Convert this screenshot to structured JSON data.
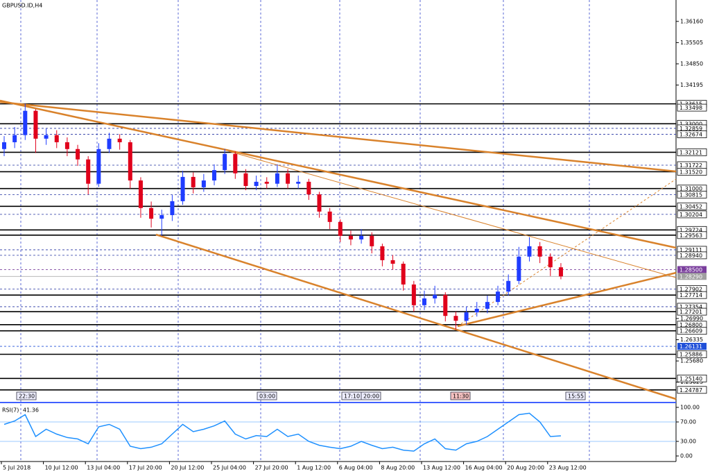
{
  "chart_data": [
    {
      "type": "candlestick",
      "title": "GBPUSD.ID,H4",
      "open": [
        1.3222,
        1.3243,
        1.3265,
        1.334,
        1.3254,
        1.3265,
        1.3243,
        1.3222,
        1.319,
        1.3115,
        1.3222,
        1.3254,
        1.3243,
        1.3125,
        1.304,
        1.3007,
        1.3018,
        1.3061,
        1.3136,
        1.3104,
        1.3125,
        1.3157,
        1.3207,
        1.3147,
        1.3108,
        1.3121,
        1.3115,
        1.3147,
        1.3115,
        1.3121,
        1.3082,
        1.3029,
        1.2997,
        1.2954,
        1.2943,
        1.2954,
        1.2922,
        1.2879,
        1.2868,
        1.2804,
        1.274,
        1.2761,
        1.2772,
        1.2707,
        1.2692,
        1.2718,
        1.2729,
        1.275,
        1.2782,
        1.2815,
        1.289,
        1.2922,
        1.289,
        1.2857
      ],
      "high": [
        1.3262,
        1.329,
        1.3362,
        1.3345,
        1.3285,
        1.328,
        1.3258,
        1.3235,
        1.32,
        1.324,
        1.3272,
        1.3268,
        1.325,
        1.3135,
        1.306,
        1.3035,
        1.308,
        1.3155,
        1.315,
        1.3145,
        1.3175,
        1.3222,
        1.3215,
        1.316,
        1.314,
        1.3135,
        1.3175,
        1.316,
        1.314,
        1.313,
        1.309,
        1.304,
        1.3005,
        1.297,
        1.2975,
        1.2965,
        1.293,
        1.2895,
        1.2875,
        1.2815,
        1.2785,
        1.28,
        1.278,
        1.272,
        1.2735,
        1.275,
        1.277,
        1.28,
        1.2835,
        1.292,
        1.295,
        1.2935,
        1.29,
        1.287
      ],
      "low": [
        1.32,
        1.3225,
        1.325,
        1.321,
        1.3235,
        1.3225,
        1.32,
        1.317,
        1.3082,
        1.3105,
        1.321,
        1.322,
        1.31,
        1.301,
        1.298,
        1.2954,
        1.3,
        1.305,
        1.3085,
        1.309,
        1.311,
        1.3145,
        1.313,
        1.3095,
        1.3095,
        1.31,
        1.3105,
        1.31,
        1.31,
        1.3065,
        1.301,
        1.2975,
        1.2935,
        1.2925,
        1.293,
        1.29,
        1.286,
        1.285,
        1.2785,
        1.272,
        1.2725,
        1.2745,
        1.269,
        1.2665,
        1.268,
        1.2705,
        1.2715,
        1.274,
        1.277,
        1.2805,
        1.2875,
        1.287,
        1.283,
        1.282
      ],
      "close": [
        1.3243,
        1.3265,
        1.334,
        1.3254,
        1.3265,
        1.3243,
        1.3222,
        1.319,
        1.3115,
        1.3222,
        1.3254,
        1.3243,
        1.3125,
        1.304,
        1.3007,
        1.3018,
        1.3061,
        1.3136,
        1.3104,
        1.3125,
        1.3157,
        1.3207,
        1.3147,
        1.3108,
        1.3121,
        1.3115,
        1.3147,
        1.3115,
        1.3121,
        1.3082,
        1.3029,
        1.2997,
        1.2954,
        1.2943,
        1.2954,
        1.2922,
        1.2879,
        1.2868,
        1.2804,
        1.274,
        1.2761,
        1.2772,
        1.2707,
        1.2692,
        1.2718,
        1.2729,
        1.275,
        1.2782,
        1.2815,
        1.289,
        1.2922,
        1.289,
        1.2857,
        1.2829
      ],
      "up_color": "#1f3cff",
      "down_color": "#e0001b",
      "ylim": [
        1.2444,
        1.3682
      ],
      "yticks": [
        {
          "value": 1.3616,
          "label": "1.36160"
        },
        1.35505,
        {
          "value": 1.3485,
          "label": "1.34850"
        },
        1.34195,
        {
          "value": 1.2699,
          "label": "1.26990"
        },
        1.26335,
        {
          "value": 1.2568,
          "label": "1.25680"
        },
        1.25025
      ],
      "levels": [
        {
          "value": 1.33615,
          "label": "1.33615",
          "line": "solid"
        },
        {
          "value": 1.33498,
          "label": "1.33498",
          "line": "none"
        },
        {
          "value": 1.33,
          "label": "1.33000",
          "line": "solid"
        },
        {
          "value": 1.32859,
          "label": "1.32859",
          "line": "dashed"
        },
        {
          "value": 1.32674,
          "label": "1.32674",
          "line": "dashed"
        },
        {
          "value": 1.32121,
          "label": "1.32121",
          "line": "solid"
        },
        {
          "value": 1.31722,
          "label": "1.31722",
          "line": "dashed"
        },
        {
          "value": 1.3152,
          "label": "1.31520",
          "line": "solid"
        },
        {
          "value": 1.31,
          "label": "1.31000",
          "line": "solid"
        },
        {
          "value": 1.30815,
          "label": "1.30815",
          "line": "dashed"
        },
        {
          "value": 1.30452,
          "label": "1.30452",
          "line": "solid"
        },
        {
          "value": 1.30204,
          "label": "1.30204",
          "line": "dashed"
        },
        {
          "value": 1.29724,
          "label": "1.29724",
          "line": "solid"
        },
        {
          "value": 1.29563,
          "label": "1.29563",
          "line": "solid"
        },
        {
          "value": 1.29111,
          "label": "1.29111",
          "line": "dashed"
        },
        {
          "value": 1.2894,
          "label": "1.28940",
          "line": "dashed"
        },
        {
          "value": 1.285,
          "label": "1.28500",
          "line": "dashed",
          "color": "#7a3e9d"
        },
        {
          "value": 1.2829,
          "label": "1.28290",
          "line": "current",
          "color": "#a0a0a0"
        },
        {
          "value": 1.27902,
          "label": "1.27902",
          "line": "dashed"
        },
        {
          "value": 1.27714,
          "label": "1.27714",
          "line": "solid"
        },
        {
          "value": 1.27354,
          "label": "1.27354",
          "line": "dashed"
        },
        {
          "value": 1.27201,
          "label": "1.27201",
          "line": "solid"
        },
        {
          "value": 1.268,
          "label": "1.26800",
          "line": "solid"
        },
        {
          "value": 1.26609,
          "label": "1.26609",
          "line": "solid"
        },
        {
          "value": 1.26131,
          "label": "1.26131",
          "line": "dashed",
          "color": "#1f4fd8"
        },
        {
          "value": 1.25886,
          "label": "1.25886",
          "line": "solid"
        },
        {
          "value": 1.2514,
          "label": "1.25140",
          "line": "solid"
        },
        {
          "value": 1.24787,
          "label": "1.24787",
          "line": "solid"
        }
      ],
      "xticks": [
        {
          "value": 0,
          "label": "5 Jul 2018"
        },
        {
          "value": 4,
          "label": "10 Jul 12:00"
        },
        {
          "value": 8,
          "label": "13 Jul 04:00"
        },
        {
          "value": 12,
          "label": "17 Jul 20:00"
        },
        {
          "value": 16,
          "label": "20 Jul 12:00"
        },
        {
          "value": 20,
          "label": "25 Jul 04:00"
        },
        {
          "value": 24,
          "label": "27 Jul 20:00"
        },
        {
          "value": 28,
          "label": "1 Aug 12:00"
        },
        {
          "value": 32,
          "label": "6 Aug 04:00"
        },
        {
          "value": 36,
          "label": "8 Aug 20:00"
        },
        {
          "value": 40,
          "label": "13 Aug 12:00"
        },
        {
          "value": 44,
          "label": "16 Aug 04:00"
        },
        {
          "value": 48,
          "label": "20 Aug 20:00"
        },
        {
          "value": 52,
          "label": "23 Aug 12:00"
        }
      ],
      "time_markers": [
        "22:30",
        "03:00",
        "17:10",
        "20:00",
        "11:30",
        "15:55"
      ]
    },
    {
      "type": "line",
      "title": "RSI(7)",
      "color": "#1e90ff",
      "values": [
        65,
        72,
        85,
        40,
        55,
        45,
        38,
        35,
        25,
        60,
        65,
        55,
        20,
        15,
        18,
        25,
        45,
        65,
        50,
        55,
        62,
        72,
        45,
        35,
        42,
        40,
        55,
        40,
        45,
        30,
        22,
        18,
        15,
        20,
        30,
        22,
        15,
        18,
        12,
        10,
        25,
        35,
        15,
        12,
        25,
        30,
        40,
        55,
        70,
        85,
        88,
        70,
        40,
        41.36
      ],
      "ylim": [
        -11.4,
        105.7
      ],
      "yticks": [
        {
          "value": 100,
          "label": "100.00"
        },
        {
          "value": 70,
          "label": "70.00"
        },
        {
          "value": 30,
          "label": "30.00"
        },
        {
          "value": 0,
          "label": "0.00"
        }
      ],
      "levels": [
        70,
        30
      ]
    }
  ]
}
